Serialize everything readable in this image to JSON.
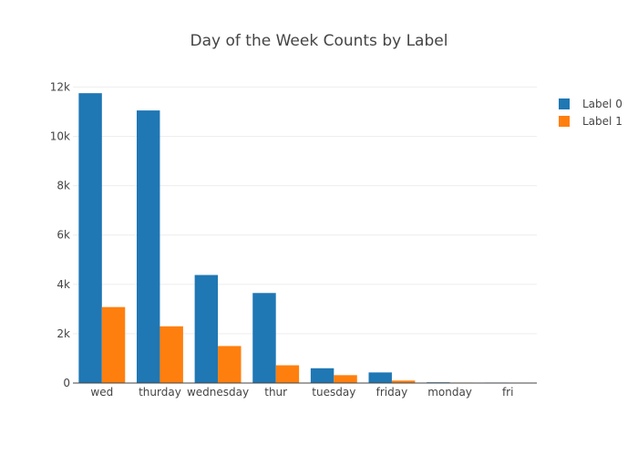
{
  "chart_data": {
    "type": "bar",
    "title": "Day of the Week Counts by Label",
    "xlabel": "",
    "ylabel": "",
    "categories": [
      "wed",
      "thurday",
      "wednesday",
      "thur",
      "tuesday",
      "friday",
      "monday",
      "fri"
    ],
    "series": [
      {
        "name": "Label 0",
        "color": "#1f77b4",
        "values": [
          11750,
          11050,
          4380,
          3650,
          600,
          430,
          30,
          20
        ]
      },
      {
        "name": "Label 1",
        "color": "#ff7f0e",
        "values": [
          3080,
          2300,
          1500,
          720,
          320,
          100,
          20,
          10
        ]
      }
    ],
    "ylim": [
      0,
      12200
    ],
    "y_ticks": [
      0,
      2000,
      4000,
      6000,
      8000,
      10000,
      12000
    ],
    "y_tick_labels": [
      "0",
      "2k",
      "4k",
      "6k",
      "8k",
      "10k",
      "12k"
    ],
    "grid": true,
    "legend_position": "top-right"
  }
}
